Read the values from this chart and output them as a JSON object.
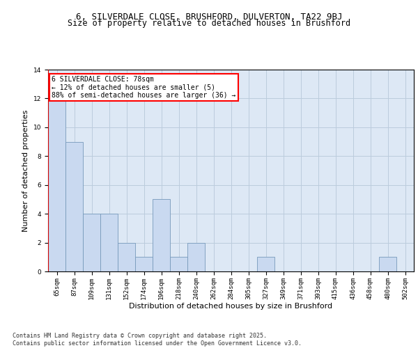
{
  "title1": "6, SILVERDALE CLOSE, BRUSHFORD, DULVERTON, TA22 9BJ",
  "title2": "Size of property relative to detached houses in Brushford",
  "xlabel": "Distribution of detached houses by size in Brushford",
  "ylabel": "Number of detached properties",
  "categories": [
    "65sqm",
    "87sqm",
    "109sqm",
    "131sqm",
    "152sqm",
    "174sqm",
    "196sqm",
    "218sqm",
    "240sqm",
    "262sqm",
    "284sqm",
    "305sqm",
    "327sqm",
    "349sqm",
    "371sqm",
    "393sqm",
    "415sqm",
    "436sqm",
    "458sqm",
    "480sqm",
    "502sqm"
  ],
  "values": [
    12,
    9,
    4,
    4,
    2,
    1,
    5,
    1,
    2,
    0,
    0,
    0,
    1,
    0,
    0,
    0,
    0,
    0,
    0,
    1,
    0
  ],
  "bar_color": "#c9d9f0",
  "bar_edge_color": "#7799bb",
  "annotation_text": "6 SILVERDALE CLOSE: 78sqm\n← 12% of detached houses are smaller (5)\n88% of semi-detached houses are larger (36) →",
  "annotation_box_color": "white",
  "annotation_box_edge": "red",
  "ylim": [
    0,
    14
  ],
  "yticks": [
    0,
    2,
    4,
    6,
    8,
    10,
    12,
    14
  ],
  "grid_color": "#bbccdd",
  "background_color": "#dde8f5",
  "footer_text": "Contains HM Land Registry data © Crown copyright and database right 2025.\nContains public sector information licensed under the Open Government Licence v3.0.",
  "title_fontsize": 9,
  "subtitle_fontsize": 8.5,
  "tick_fontsize": 6.5,
  "ylabel_fontsize": 8,
  "xlabel_fontsize": 8,
  "annotation_fontsize": 7,
  "footer_fontsize": 6
}
